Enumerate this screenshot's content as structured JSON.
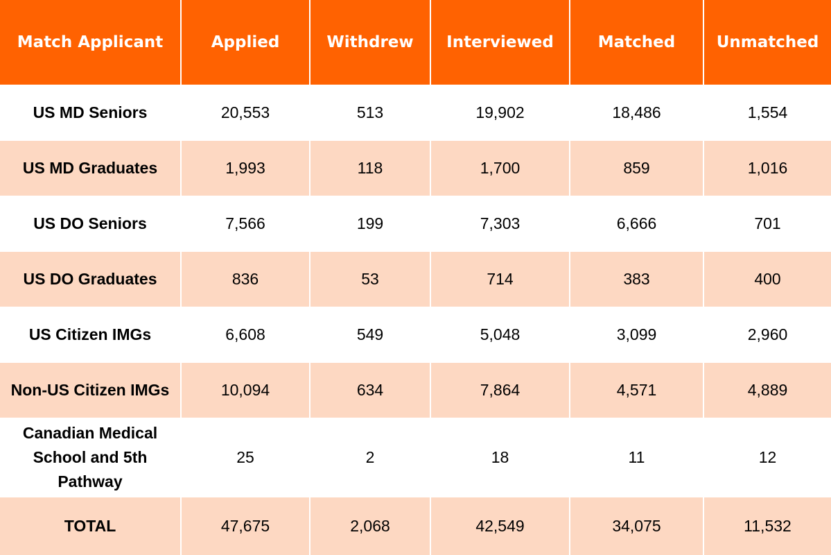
{
  "table": {
    "headers": [
      "Match Applicant",
      "Applied",
      "Withdrew",
      "Interviewed",
      "Matched",
      "Unmatched"
    ],
    "rows": [
      [
        "US MD Seniors",
        "20,553",
        "513",
        "19,902",
        "18,486",
        "1,554"
      ],
      [
        "US MD Graduates",
        "1,993",
        "118",
        "1,700",
        "859",
        "1,016"
      ],
      [
        "US DO Seniors",
        "7,566",
        "199",
        "7,303",
        "6,666",
        "701"
      ],
      [
        "US DO Graduates",
        "836",
        "53",
        "714",
        "383",
        "400"
      ],
      [
        "US Citizen IMGs",
        "6,608",
        "549",
        "5,048",
        "3,099",
        "2,960"
      ],
      [
        "Non-US Citizen IMGs",
        "10,094",
        "634",
        "7,864",
        "4,571",
        "4,889"
      ],
      [
        "Canadian Medical School and 5th Pathway",
        "25",
        "2",
        "18",
        "11",
        "12"
      ],
      [
        "TOTAL",
        "47,675",
        "2,068",
        "42,549",
        "34,075",
        "11,532"
      ]
    ]
  }
}
